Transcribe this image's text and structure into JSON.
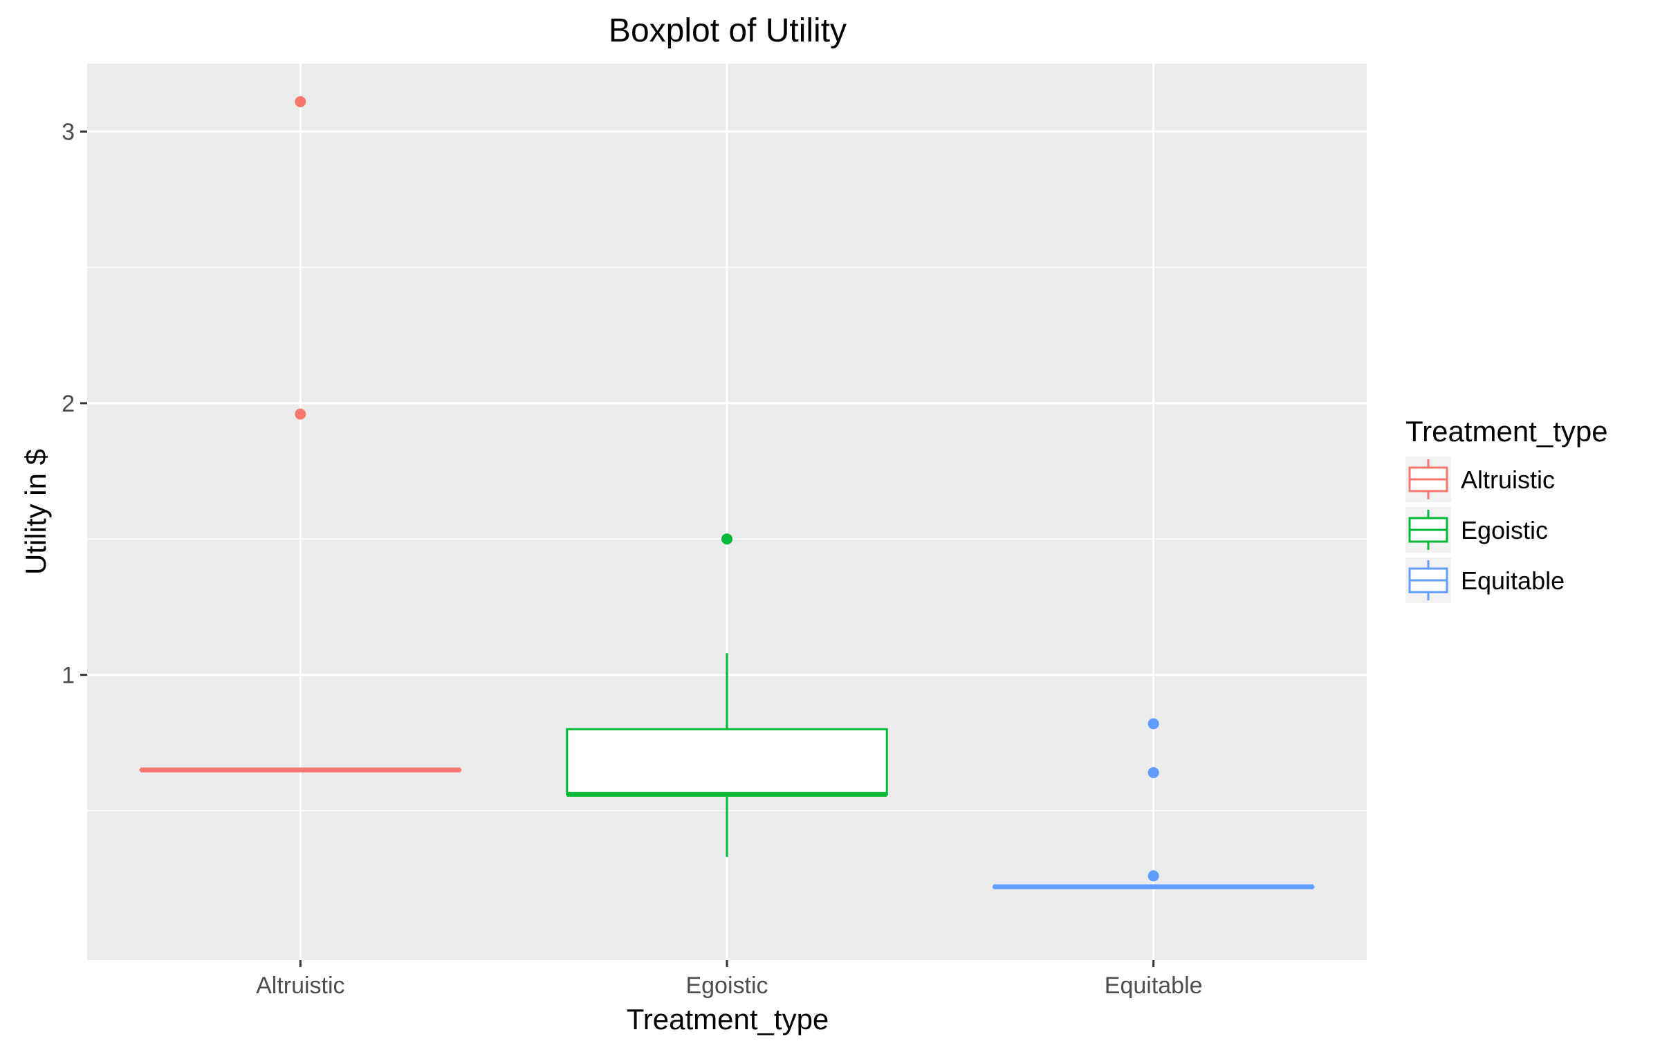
{
  "chart_data": {
    "type": "boxplot",
    "title": "Boxplot of Utility",
    "xlabel": "Treatment_type",
    "ylabel": "Utility in $",
    "categories": [
      "Altruistic",
      "Egoistic",
      "Equitable"
    ],
    "ylim": [
      -0.05,
      3.25
    ],
    "yticks": [
      1,
      2,
      3
    ],
    "grid": true,
    "legend": {
      "title": "Treatment_type",
      "position": "right",
      "entries": [
        "Altruistic",
        "Egoistic",
        "Equitable"
      ]
    },
    "series": [
      {
        "name": "Altruistic",
        "color": "#F8766D",
        "box": {
          "whisker_low": 0.65,
          "q1": 0.65,
          "median": 0.65,
          "q3": 0.65,
          "whisker_high": 0.65
        },
        "outliers": [
          1.96,
          3.11
        ]
      },
      {
        "name": "Egoistic",
        "color": "#00BA38",
        "box": {
          "whisker_low": 0.33,
          "q1": 0.56,
          "median": 0.56,
          "q3": 0.8,
          "whisker_high": 1.08
        },
        "outliers": [
          1.5
        ]
      },
      {
        "name": "Equitable",
        "color": "#619CFF",
        "box": {
          "whisker_low": 0.22,
          "q1": 0.22,
          "median": 0.22,
          "q3": 0.22,
          "whisker_high": 0.22
        },
        "outliers": [
          0.26,
          0.64,
          0.82
        ]
      }
    ]
  }
}
